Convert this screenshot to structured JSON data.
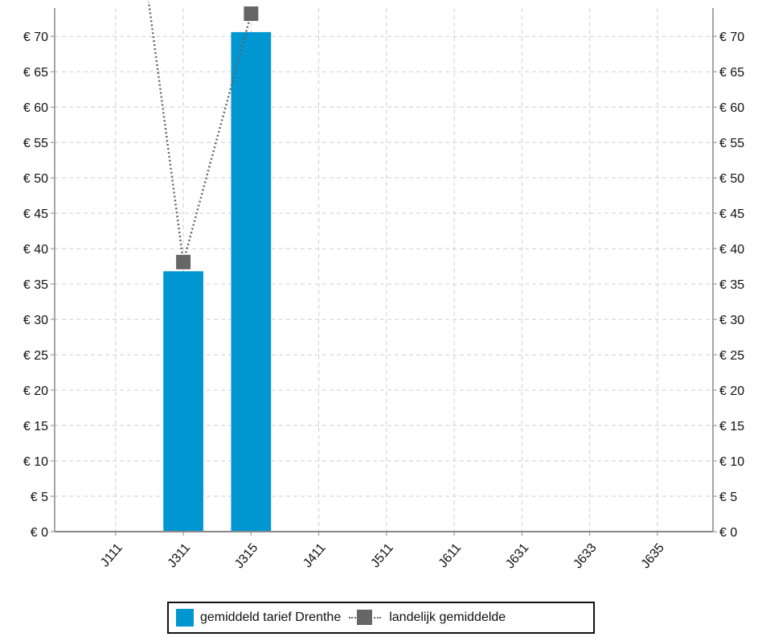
{
  "chart_data": {
    "type": "bar",
    "categories": [
      "J111",
      "J311",
      "J315",
      "J411",
      "J511",
      "J611",
      "J631",
      "J633",
      "J635"
    ],
    "series": [
      {
        "name": "gemiddeld tarief Drenthe",
        "kind": "bar",
        "color": "#0096d2",
        "values": [
          null,
          36.8,
          70.6,
          null,
          null,
          null,
          null,
          null,
          null
        ]
      },
      {
        "name": "landelijk gemiddelde",
        "kind": "line",
        "line_style": "dotted",
        "marker": "square",
        "color": "#666666",
        "values": [
          110,
          38.1,
          73.2,
          null,
          null,
          null,
          null,
          null,
          null
        ]
      }
    ],
    "ylim": [
      0,
      74
    ],
    "yticks": [
      0,
      5,
      10,
      15,
      20,
      25,
      30,
      35,
      40,
      45,
      50,
      55,
      60,
      65,
      70
    ],
    "y_tick_format": "€ {v}",
    "y_axis_mirrored": true,
    "grid": true,
    "legend_position": "bottom-center",
    "title": "",
    "xlabel": "",
    "ylabel": ""
  },
  "legend": {
    "items": [
      {
        "label": "gemiddeld tarief Drenthe",
        "color": "#0096d2",
        "icon": "bar-swatch"
      },
      {
        "label": "landelijk gemiddelde",
        "color": "#666666",
        "icon": "dotted-line-square-marker"
      }
    ]
  }
}
